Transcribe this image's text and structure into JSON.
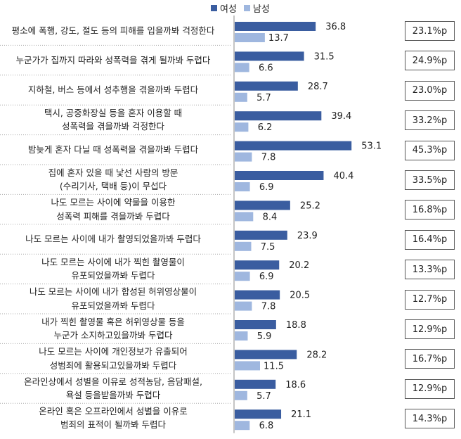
{
  "legend": [
    {
      "name": "여성",
      "color": "#3a5da0"
    },
    {
      "name": "남성",
      "color": "#9fb7df"
    }
  ],
  "chart_data": {
    "type": "bar",
    "orientation": "horizontal",
    "categories": [
      [
        "평소에 폭행, 강도, 절도 등의 피해를 입을까봐 걱정한다"
      ],
      [
        "누군가가 집까지 따라와 성폭력을 겪게 될까봐 두렵다"
      ],
      [
        "지하철, 버스 등에서 성추행을 겪을까봐 두렵다"
      ],
      [
        "택시, 공중화장실 등을 혼자 이용할 때",
        "성폭력을 겪을까봐 걱정한다"
      ],
      [
        "밤늦게 혼자 다닐 때 성폭력을 겪을까봐 두렵다"
      ],
      [
        "집에 혼자 있을 때 낯선 사람의 방문",
        "(수리기사, 택배 등)이 무섭다"
      ],
      [
        "나도 모르는 사이에 약물을 이용한",
        "성폭력 피해를 겪을까봐 두렵다"
      ],
      [
        "나도 모르는 사이에 내가 촬영되었을까봐 두렵다"
      ],
      [
        "나도 모르는 사이에 내가 찍힌 촬영물이",
        "유포되었을까봐 두렵다"
      ],
      [
        "나도 모르는 사이에 내가 합성된 허위영상물이",
        "유포되었을까봐 두렵다"
      ],
      [
        "내가 찍힌 촬영물 혹은 허위영상물 등을",
        "누군가 소지하고있을까봐 두렵다"
      ],
      [
        "나도 모르는 사이에 개인정보가 유출되어",
        "성범죄에 활용되고있을까봐 두렵다"
      ],
      [
        "온라인상에서 성별을 이유로 성적농담, 음담패설,",
        "욕설 등을받을까봐 두렵다"
      ],
      [
        "온라인 혹은 오프라인에서 성별을 이유로",
        "범죄의 표적이 될까봐 두렵다"
      ]
    ],
    "series": [
      {
        "name": "여성",
        "values": [
          36.8,
          31.5,
          28.7,
          39.4,
          53.1,
          40.4,
          25.2,
          23.9,
          20.2,
          20.5,
          18.8,
          28.2,
          18.6,
          21.1
        ]
      },
      {
        "name": "남성",
        "values": [
          13.7,
          6.6,
          5.7,
          6.2,
          7.8,
          6.9,
          8.4,
          7.5,
          6.9,
          7.8,
          5.9,
          11.5,
          5.7,
          6.8
        ]
      }
    ],
    "differences": [
      "23.1%p",
      "24.9%p",
      "23.0%p",
      "33.2%p",
      "45.3%p",
      "33.5%p",
      "16.8%p",
      "16.4%p",
      "13.3%p",
      "12.7%p",
      "12.9%p",
      "16.7%p",
      "12.9%p",
      "14.3%p"
    ],
    "legend_position": "top-center",
    "grid": false
  }
}
